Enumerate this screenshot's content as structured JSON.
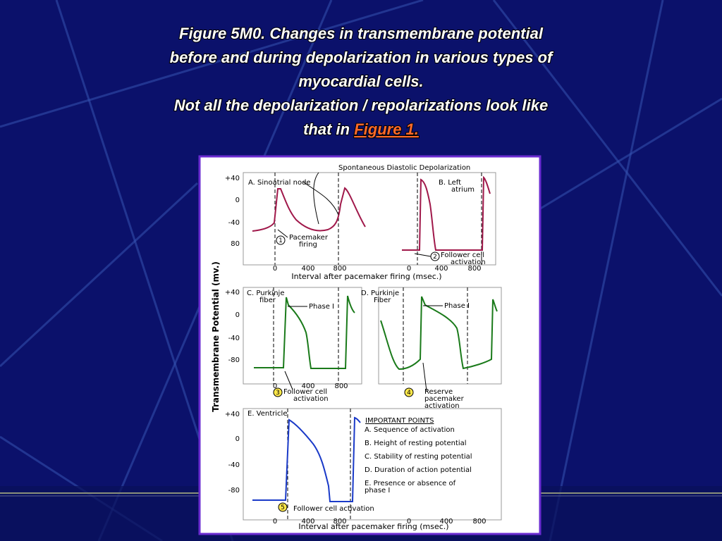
{
  "title": {
    "lines": [
      "Figure 5M0. Changes in transmembrane potential",
      "before and during depolarization in various types of",
      "myocardial cells.",
      "Not all the depolarization / repolarizations look like"
    ],
    "last_line": "that in ",
    "link": "Figure 1."
  },
  "figure": {
    "y_label": "Transmembrane Potential (mv.)",
    "x_label": "Interval after pacemaker firing (msec.)",
    "top_note": "Spontaneous Diastolic Depolarization",
    "panels": [
      {
        "label": [
          "A.  Sinoatrial node"
        ],
        "step": "1",
        "note": [
          "Pacemaker",
          "firing"
        ]
      },
      {
        "label": [
          "B.  Left",
          "atrium"
        ],
        "step": "2",
        "note": [
          "Follower cell",
          "activation"
        ]
      },
      {
        "label": [
          "C.  Purkinje",
          "fiber"
        ],
        "step": "3",
        "note": [
          "Follower cell",
          "activation"
        ],
        "phase": "Phase I"
      },
      {
        "label": [
          "D.  Purkinje",
          "Fiber"
        ],
        "step": "4",
        "note": [
          "Reserve",
          "pacemaker",
          "activation"
        ],
        "phase": "Phase I"
      },
      {
        "label": [
          "E. Ventricle"
        ],
        "step": "5",
        "note": [
          "Follower cell activation"
        ]
      }
    ],
    "yticks_top": [
      "+40",
      "0",
      "-40",
      "80"
    ],
    "yticks": [
      "+40",
      "0",
      "-40",
      "-80"
    ],
    "xticks": [
      "0",
      "400",
      "800"
    ],
    "important": {
      "title": "IMPORTANT POINTS",
      "items": [
        [
          "A.  Sequence of activation"
        ],
        [
          "B.  Height of resting potential"
        ],
        [
          "C.  Stability of resting potential"
        ],
        [
          "D.  Duration of action potential"
        ],
        [
          "E.  Presence or absence of",
          "phase I"
        ]
      ]
    }
  }
}
